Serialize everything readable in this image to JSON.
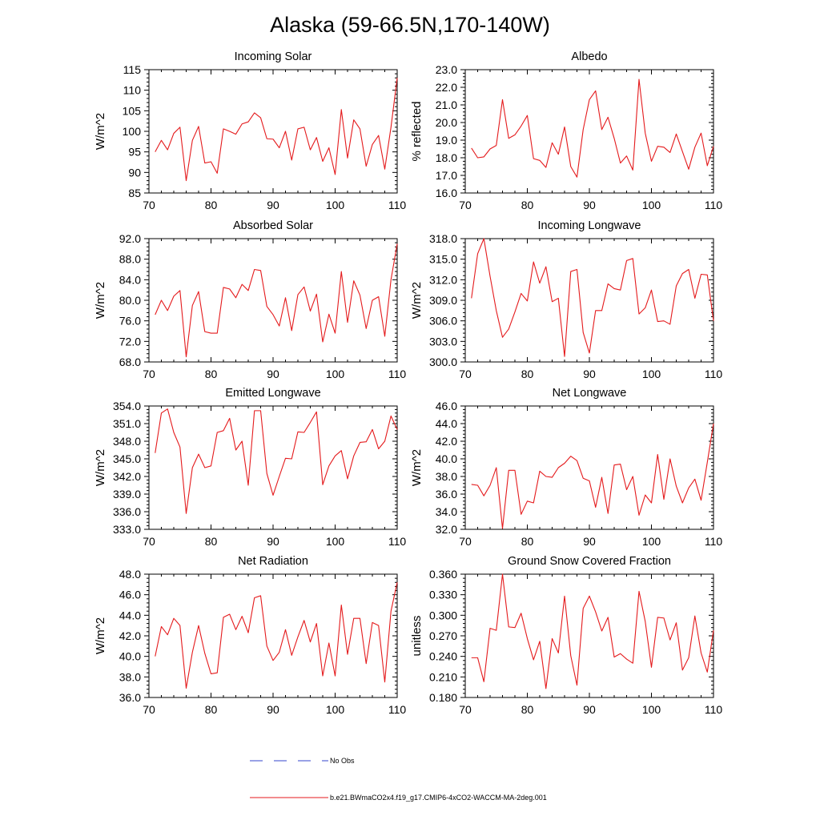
{
  "figure_title": "Alaska (59-66.5N,170-140W)",
  "legend": {
    "entries": [
      {
        "label": "No Obs",
        "color": "#3344cc",
        "style": "dashed"
      },
      {
        "label": "b.e21.BWmaCO2x4.f19_g17.CMIP6-4xCO2-WACCM-MA-2deg.001",
        "color": "#e41a1c",
        "style": "solid"
      }
    ]
  },
  "series_color": "#e41a1c",
  "chart_data": [
    {
      "type": "line",
      "title": "Incoming Solar",
      "xlabel": "",
      "ylabel": "W/m^2",
      "xlim": [
        70,
        110
      ],
      "ylim": [
        85,
        115
      ],
      "xticks": [
        70,
        80,
        90,
        100,
        110
      ],
      "yticks": [
        85,
        90,
        95,
        100,
        105,
        110,
        115
      ],
      "ytick_labels": [
        "85",
        "90",
        "95",
        "100",
        "105",
        "110",
        "115"
      ],
      "x_start": 71,
      "values": [
        95.0,
        97.8,
        95.5,
        99.5,
        101.0,
        88.0,
        97.8,
        101.2,
        92.3,
        92.6,
        89.8,
        100.6,
        100.0,
        99.3,
        101.8,
        102.3,
        104.5,
        103.3,
        98.2,
        98.1,
        96.0,
        100.0,
        93.0,
        100.6,
        101.0,
        95.5,
        98.5,
        92.7,
        96.0,
        89.5,
        105.3,
        93.5,
        102.8,
        100.6,
        91.5,
        96.8,
        99.0,
        90.8,
        101.0,
        113.0
      ]
    },
    {
      "type": "line",
      "title": "Albedo",
      "xlabel": "",
      "ylabel": "% reflected",
      "xlim": [
        70,
        110
      ],
      "ylim": [
        16.0,
        23.0
      ],
      "xticks": [
        70,
        80,
        90,
        100,
        110
      ],
      "yticks": [
        16,
        17,
        18,
        19,
        20,
        21,
        22,
        23
      ],
      "ytick_labels": [
        "16.0",
        "17.0",
        "18.0",
        "19.0",
        "20.0",
        "21.0",
        "22.0",
        "23.0"
      ],
      "x_start": 71,
      "values": [
        18.55,
        18.0,
        18.05,
        18.5,
        18.7,
        21.3,
        19.1,
        19.3,
        19.8,
        20.4,
        17.95,
        17.85,
        17.45,
        18.85,
        18.2,
        19.75,
        17.5,
        16.9,
        19.6,
        21.3,
        21.8,
        19.6,
        20.3,
        19.1,
        17.7,
        18.1,
        17.3,
        22.45,
        19.4,
        17.8,
        18.65,
        18.6,
        18.3,
        19.35,
        18.35,
        17.35,
        18.6,
        19.4,
        17.55,
        18.65
      ]
    },
    {
      "type": "line",
      "title": "Absorbed Solar",
      "xlabel": "",
      "ylabel": "W/m^2",
      "xlim": [
        70,
        110
      ],
      "ylim": [
        68.0,
        92.0
      ],
      "xticks": [
        70,
        80,
        90,
        100,
        110
      ],
      "yticks": [
        68,
        72,
        76,
        80,
        84,
        88,
        92
      ],
      "ytick_labels": [
        "68.0",
        "72.0",
        "76.0",
        "80.0",
        "84.0",
        "88.0",
        "92.0"
      ],
      "x_start": 71,
      "values": [
        77.2,
        80.0,
        78.0,
        80.8,
        81.9,
        69.0,
        79.0,
        81.7,
        73.9,
        73.6,
        73.6,
        82.5,
        82.2,
        80.5,
        83.1,
        81.9,
        86.0,
        85.8,
        78.8,
        77.2,
        75.0,
        80.5,
        74.1,
        81.1,
        82.6,
        77.9,
        81.2,
        71.9,
        77.3,
        73.6,
        85.6,
        75.7,
        83.8,
        81.0,
        74.5,
        80.0,
        80.7,
        73.0,
        84.0,
        91.0
      ]
    },
    {
      "type": "line",
      "title": "Incoming Longwave",
      "xlabel": "",
      "ylabel": "W/m^2",
      "xlim": [
        70,
        110
      ],
      "ylim": [
        300.0,
        318.0
      ],
      "xticks": [
        70,
        80,
        90,
        100,
        110
      ],
      "yticks": [
        300,
        303,
        306,
        309,
        312,
        315,
        318
      ],
      "ytick_labels": [
        "300.0",
        "303.0",
        "306.0",
        "309.0",
        "312.0",
        "315.0",
        "318.0"
      ],
      "x_start": 71,
      "values": [
        309.3,
        315.8,
        318.0,
        312.5,
        307.5,
        303.6,
        304.8,
        307.3,
        310.0,
        308.9,
        314.6,
        311.5,
        313.9,
        308.8,
        309.3,
        300.8,
        313.2,
        313.5,
        304.3,
        301.3,
        307.5,
        307.5,
        311.4,
        310.7,
        310.5,
        314.8,
        315.1,
        307.0,
        307.9,
        310.5,
        305.9,
        306.0,
        305.5,
        311.1,
        312.9,
        313.5,
        309.3,
        312.8,
        312.7,
        306.0
      ]
    },
    {
      "type": "line",
      "title": "Emitted Longwave",
      "xlabel": "",
      "ylabel": "W/m^2",
      "xlim": [
        70,
        110
      ],
      "ylim": [
        333.0,
        354.0
      ],
      "xticks": [
        70,
        80,
        90,
        100,
        110
      ],
      "yticks": [
        333,
        336,
        339,
        342,
        345,
        348,
        351,
        354
      ],
      "ytick_labels": [
        "333.0",
        "336.0",
        "339.0",
        "342.0",
        "345.0",
        "348.0",
        "351.0",
        "354.0"
      ],
      "x_start": 71,
      "values": [
        346.0,
        352.8,
        353.5,
        349.5,
        347.0,
        335.7,
        343.5,
        345.8,
        343.5,
        343.8,
        349.5,
        349.8,
        351.9,
        346.5,
        348.0,
        340.5,
        353.2,
        353.2,
        342.5,
        338.8,
        342.0,
        345.1,
        345.0,
        349.6,
        349.5,
        351.2,
        353.0,
        340.6,
        343.8,
        345.5,
        346.4,
        341.6,
        345.5,
        347.8,
        347.9,
        350.0,
        346.7,
        348.0,
        352.3,
        350.0
      ]
    },
    {
      "type": "line",
      "title": "Net Longwave",
      "xlabel": "",
      "ylabel": "W/m^2",
      "xlim": [
        70,
        110
      ],
      "ylim": [
        32.0,
        46.0
      ],
      "xticks": [
        70,
        80,
        90,
        100,
        110
      ],
      "yticks": [
        32,
        34,
        36,
        38,
        40,
        42,
        44,
        46
      ],
      "ytick_labels": [
        "32.0",
        "34.0",
        "36.0",
        "38.0",
        "40.0",
        "42.0",
        "44.0",
        "46.0"
      ],
      "x_start": 71,
      "values": [
        37.1,
        37.0,
        35.8,
        37.0,
        39.0,
        32.1,
        38.7,
        38.7,
        33.7,
        35.2,
        35.0,
        38.6,
        38.0,
        37.9,
        39.0,
        39.5,
        40.3,
        39.8,
        37.8,
        37.5,
        34.5,
        37.9,
        33.8,
        39.3,
        39.4,
        36.5,
        38.0,
        33.6,
        35.9,
        35.0,
        40.5,
        35.4,
        40.0,
        36.9,
        35.0,
        36.7,
        37.7,
        35.3,
        39.6,
        44.0
      ]
    },
    {
      "type": "line",
      "title": "Net Radiation",
      "xlabel": "",
      "ylabel": "W/m^2",
      "xlim": [
        70,
        110
      ],
      "ylim": [
        36.0,
        48.0
      ],
      "xticks": [
        70,
        80,
        90,
        100,
        110
      ],
      "yticks": [
        36,
        38,
        40,
        42,
        44,
        46,
        48
      ],
      "ytick_labels": [
        "36.0",
        "38.0",
        "40.0",
        "42.0",
        "44.0",
        "46.0",
        "48.0"
      ],
      "x_start": 71,
      "values": [
        40.0,
        42.9,
        42.1,
        43.7,
        43.0,
        36.9,
        40.4,
        43.0,
        40.3,
        38.3,
        38.4,
        43.8,
        44.1,
        42.6,
        43.9,
        42.3,
        45.7,
        45.9,
        41.0,
        39.6,
        40.4,
        42.6,
        40.1,
        41.9,
        43.5,
        41.4,
        43.2,
        38.1,
        41.3,
        38.1,
        45.0,
        40.2,
        43.7,
        43.7,
        39.3,
        43.3,
        43.0,
        37.5,
        44.4,
        47.2
      ]
    },
    {
      "type": "line",
      "title": "Ground Snow Covered Fraction",
      "xlabel": "",
      "ylabel": "unitless",
      "xlim": [
        70,
        110
      ],
      "ylim": [
        0.18,
        0.36
      ],
      "xticks": [
        70,
        80,
        90,
        100,
        110
      ],
      "yticks": [
        0.18,
        0.21,
        0.24,
        0.27,
        0.3,
        0.33,
        0.36
      ],
      "ytick_labels": [
        "0.180",
        "0.210",
        "0.240",
        "0.270",
        "0.300",
        "0.330",
        "0.360"
      ],
      "x_start": 71,
      "values": [
        0.238,
        0.238,
        0.203,
        0.281,
        0.278,
        0.36,
        0.283,
        0.282,
        0.303,
        0.266,
        0.235,
        0.262,
        0.193,
        0.266,
        0.245,
        0.328,
        0.241,
        0.198,
        0.31,
        0.328,
        0.305,
        0.277,
        0.297,
        0.239,
        0.244,
        0.236,
        0.23,
        0.335,
        0.291,
        0.224,
        0.297,
        0.296,
        0.264,
        0.289,
        0.22,
        0.238,
        0.299,
        0.245,
        0.217,
        0.278
      ]
    }
  ]
}
